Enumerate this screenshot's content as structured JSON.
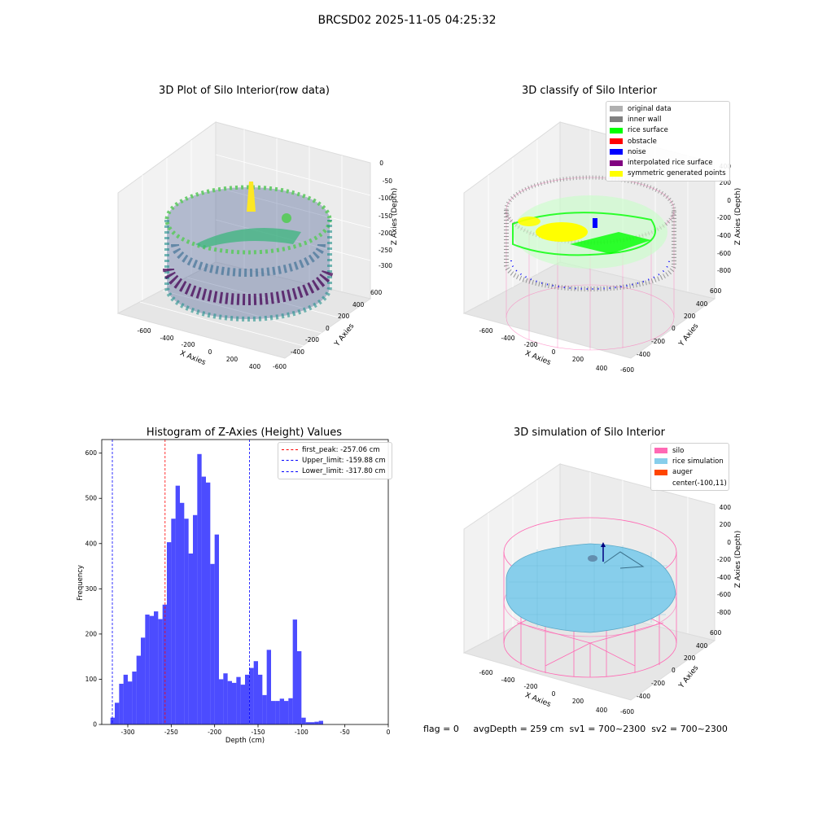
{
  "figure": {
    "suptitle": "BRCSD02 2025-11-05 04:25:32"
  },
  "panels": {
    "raw": {
      "title": "3D Plot of Silo Interior(row data)",
      "xlabel": "X Axies",
      "ylabel": "Y Axies",
      "zlabel": "Z Axies (Depth)",
      "xticks": [
        "-600",
        "-400",
        "-200",
        "0",
        "200",
        "400"
      ],
      "yticks": [
        "600",
        "400",
        "200",
        "0",
        "-200",
        "-400",
        "-600"
      ],
      "zticks": [
        "0",
        "-50",
        "-100",
        "-150",
        "-200",
        "-250",
        "-300"
      ]
    },
    "classify": {
      "title": "3D classify of Silo Interior",
      "xlabel": "X Axies",
      "ylabel": "Y Axies",
      "zlabel": "Z Axies (Depth)",
      "xticks": [
        "-600",
        "-400",
        "-200",
        "0",
        "200",
        "400"
      ],
      "yticks": [
        "600",
        "400",
        "200",
        "0",
        "-200",
        "-400",
        "-600"
      ],
      "zticks": [
        "400",
        "200",
        "0",
        "-200",
        "-400",
        "-600",
        "-800"
      ],
      "legend": [
        {
          "label": "original data",
          "color": "#b0b0b0"
        },
        {
          "label": "inner wall",
          "color": "#808080"
        },
        {
          "label": "rice surface",
          "color": "#00ff00"
        },
        {
          "label": "obstacle",
          "color": "#ff0000"
        },
        {
          "label": "noise",
          "color": "#0000ff"
        },
        {
          "label": "interpolated rice surface",
          "color": "#800080"
        },
        {
          "label": "symmetric generated points",
          "color": "#ffff00"
        }
      ]
    },
    "histogram": {
      "title": "Histogram of Z-Axies (Height) Values",
      "xlabel": "Depth (cm)",
      "ylabel": "Frequency",
      "xticks": [
        "-300",
        "-250",
        "-200",
        "-150",
        "-100",
        "-50",
        "0"
      ],
      "yticks": [
        "0",
        "100",
        "200",
        "300",
        "400",
        "500",
        "600"
      ],
      "legend": [
        {
          "label": "first_peak: -257.06 cm",
          "color": "#ff0000"
        },
        {
          "label": "Upper_limit: -159.88 cm",
          "color": "#0000ff"
        },
        {
          "label": "Lower_limit: -317.80 cm",
          "color": "#0000ff"
        }
      ]
    },
    "simulation": {
      "title": "3D simulation of Silo Interior",
      "xlabel": "X Axies",
      "ylabel": "Y Axies",
      "zlabel": "Z Axies (Depth)",
      "xticks": [
        "-600",
        "-400",
        "-200",
        "0",
        "200",
        "400"
      ],
      "yticks": [
        "600",
        "400",
        "200",
        "0",
        "-200",
        "-400",
        "-600"
      ],
      "zticks": [
        "400",
        "200",
        "0",
        "-200",
        "-400",
        "-600",
        "-800"
      ],
      "legend": [
        {
          "label": "silo",
          "color": "#ff69b4"
        },
        {
          "label": "rice simulation",
          "color": "#87ceeb"
        },
        {
          "label": "auger",
          "color": "#ff4500"
        },
        {
          "label": "center(-100,11)",
          "color": ""
        }
      ]
    }
  },
  "footer": {
    "text": "flag = 0     avgDepth = 259 cm  sv1 = 700~2300  sv2 = 700~2300"
  },
  "chart_data": [
    {
      "type": "bar",
      "title": "Histogram of Z-Axies (Height) Values",
      "xlabel": "Depth (cm)",
      "ylabel": "Frequency",
      "xlim": [
        -330,
        0
      ],
      "ylim": [
        0,
        630
      ],
      "bin_start": -320,
      "bin_width": 5,
      "values": [
        15,
        48,
        90,
        110,
        95,
        117,
        152,
        192,
        243,
        240,
        250,
        233,
        265,
        403,
        455,
        528,
        490,
        455,
        378,
        463,
        598,
        548,
        535,
        355,
        420,
        100,
        113,
        96,
        92,
        105,
        88,
        110,
        125,
        140,
        110,
        65,
        165,
        52,
        52,
        57,
        52,
        58,
        232,
        162,
        15,
        5,
        5,
        6,
        8
      ],
      "color": "#0000ff",
      "lines": [
        {
          "name": "first_peak: -257.06 cm",
          "x": -257.06,
          "color": "#ff0000"
        },
        {
          "name": "Upper_limit: -159.88 cm",
          "x": -159.88,
          "color": "#0000ff"
        },
        {
          "name": "Lower_limit: -317.80 cm",
          "x": -317.8,
          "color": "#0000ff"
        }
      ]
    }
  ]
}
